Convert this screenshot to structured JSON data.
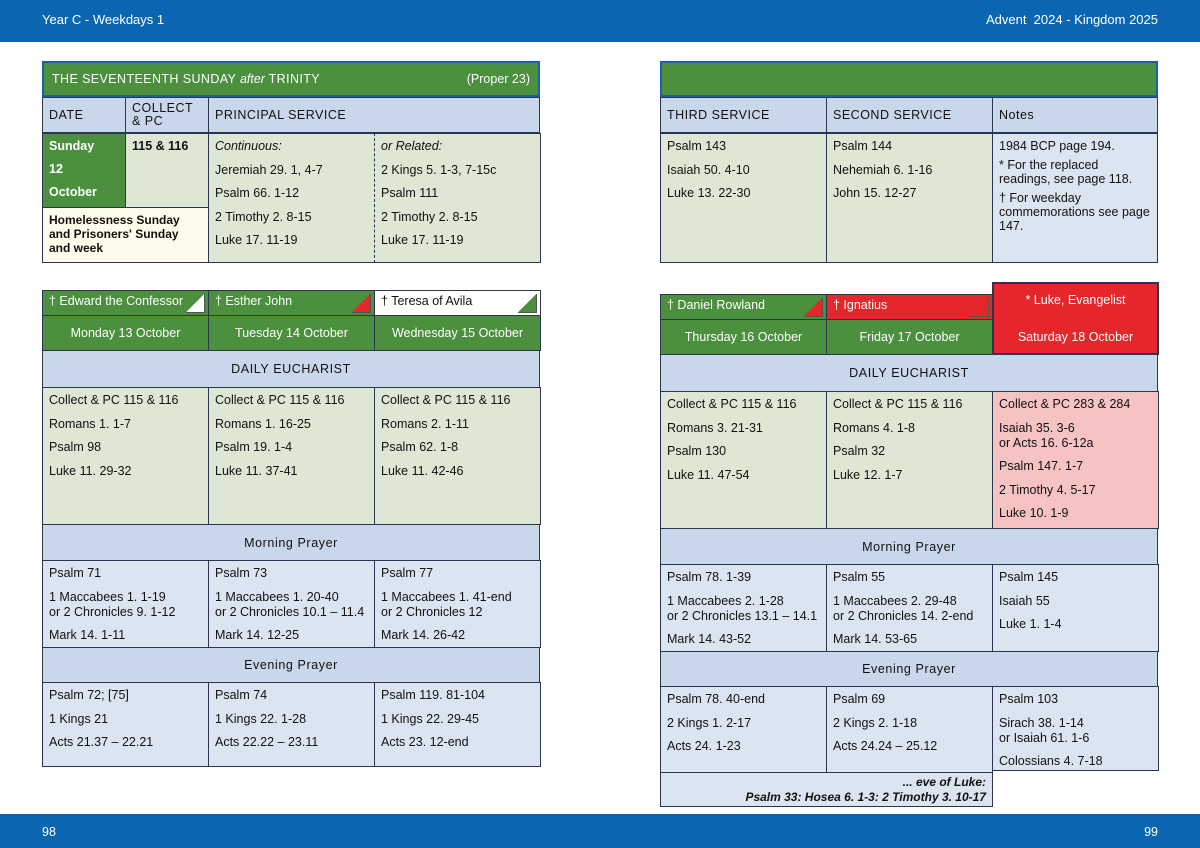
{
  "header": {
    "left": "Year C - Weekdays 1",
    "right": "Advent  2024 - Kingdom 2025"
  },
  "footer": {
    "left": "98",
    "right": "99"
  },
  "sunday": {
    "title": "THE SEVENTEENTH SUNDAY",
    "title_em": "after",
    "title_end": "TRINITY",
    "proper": "(Proper 23)",
    "headers": [
      "DATE",
      "COLLECT & PC",
      "PRINCIPAL SERVICE",
      "THIRD SERVICE",
      "SECOND SERVICE",
      "Notes"
    ],
    "date": [
      "Sunday",
      "12",
      "October"
    ],
    "note": "Homelessness Sunday and Prisoners' Sunday and week",
    "collect": "115 & 116",
    "continuous": [
      "Continuous:",
      "Jeremiah 29. 1, 4-7",
      "Psalm 66. 1-12",
      "2 Timothy 2. 8-15",
      "Luke 17. 11-19"
    ],
    "related": [
      "or Related:",
      "2 Kings 5. 1-3, 7-15c",
      "Psalm 111",
      "2 Timothy 2. 8-15",
      "Luke 17. 11-19"
    ],
    "third": [
      "Psalm 143",
      "Isaiah 50. 4-10",
      "Luke 13. 22-30"
    ],
    "second": [
      "Psalm 144",
      "Nehemiah 6. 1-16",
      "John 15. 12-27"
    ],
    "notes": [
      "1984 BCP page 194.",
      "* For the replaced readings, see page 118.",
      "† For weekday commemorations see page 147."
    ]
  },
  "week": {
    "labels": {
      "eucharist": "DAILY EUCHARIST",
      "morning": "Morning Prayer",
      "evening": "Evening Prayer"
    },
    "days": [
      {
        "commemoration": "† Edward the Confessor",
        "date": "Monday 13 October",
        "eucharist": [
          "Collect & PC 115 & 116",
          "Romans 1. 1-7",
          "Psalm 98",
          "Luke 11. 29-32"
        ],
        "morning": [
          "Psalm 71",
          [
            "1 Maccabees 1. 1-19",
            "or 2 Chronicles 9. 1-12"
          ],
          "Mark 14. 1-11"
        ],
        "evening": [
          "Psalm 72; [75]",
          "1 Kings 21",
          "Acts 21.37 – 22.21"
        ]
      },
      {
        "commemoration": "† Esther John",
        "date": "Tuesday 14 October",
        "eucharist": [
          "Collect & PC 115 & 116",
          "Romans 1. 16-25",
          "Psalm 19. 1-4",
          "Luke 11. 37-41"
        ],
        "morning": [
          "Psalm 73",
          [
            "1 Maccabees 1. 20-40",
            "or 2 Chronicles 10.1 – 11.4"
          ],
          "Mark 14. 12-25"
        ],
        "evening": [
          "Psalm 74",
          "1 Kings 22. 1-28",
          "Acts 22.22 – 23.11"
        ]
      },
      {
        "commemoration": "† Teresa of Avila",
        "date": "Wednesday 15 October",
        "eucharist": [
          "Collect & PC 115 & 116",
          "Romans 2. 1-11",
          "Psalm 62. 1-8",
          "Luke 11. 42-46"
        ],
        "morning": [
          "Psalm 77",
          [
            "1 Maccabees 1. 41-end",
            "or 2 Chronicles 12"
          ],
          "Mark 14. 26-42"
        ],
        "evening": [
          "Psalm 119. 81-104",
          "1 Kings 22. 29-45",
          "Acts 23. 12-end"
        ]
      },
      {
        "commemoration": "† Daniel Rowland",
        "date": "Thursday 16 October",
        "eucharist": [
          "Collect & PC 115 & 116",
          "Romans 3. 21-31",
          "Psalm 130",
          "Luke 11. 47-54"
        ],
        "morning": [
          "Psalm 78. 1-39",
          [
            "1 Maccabees 2. 1-28",
            "or 2 Chronicles 13.1 – 14.1"
          ],
          "Mark 14. 43-52"
        ],
        "evening": [
          "Psalm 78. 40-end",
          "2 Kings 1. 2-17",
          "Acts 24. 1-23"
        ]
      },
      {
        "commemoration": "† Ignatius",
        "date": "Friday 17 October",
        "eucharist": [
          "Collect & PC 115 & 116",
          "Romans 4. 1-8",
          "Psalm 32",
          "Luke 12. 1-7"
        ],
        "morning": [
          "Psalm 55",
          [
            "1 Maccabees 2. 29-48",
            "or 2 Chronicles 14. 2-end"
          ],
          "Mark 14. 53-65"
        ],
        "evening": [
          "Psalm 69",
          "2 Kings 2. 1-18",
          "Acts 24.24 – 25.12"
        ]
      },
      {
        "commemoration": "* Luke, Evangelist",
        "date": "Saturday 18 October",
        "eucharist": [
          "Collect & PC 283 & 284",
          [
            "Isaiah 35. 3-6",
            "or Acts 16. 6-12a"
          ],
          "Psalm 147. 1-7",
          "2 Timothy 4. 5-17",
          "Luke 10. 1-9"
        ],
        "morning": [
          "Psalm 145",
          "Isaiah 55",
          "Luke 1. 1-4"
        ],
        "evening": [
          "Psalm 103",
          [
            "Sirach 38. 1-14",
            "or Isaiah 61. 1-6"
          ],
          "Colossians 4. 7-18"
        ]
      }
    ],
    "eve": [
      "... eve of Luke:",
      "Psalm 33:  Hosea 6. 1-3:  2 Timothy 3. 10-17"
    ]
  }
}
